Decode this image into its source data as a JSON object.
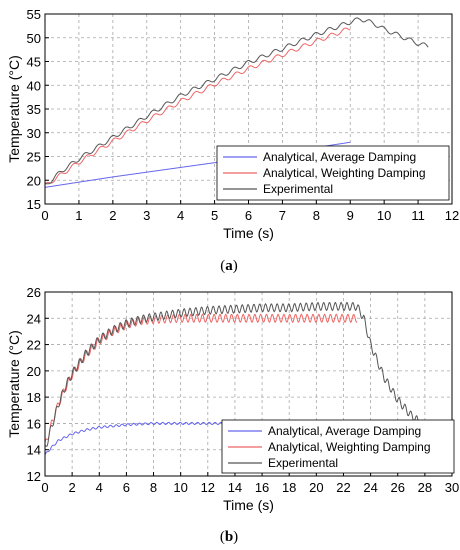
{
  "chart_data": [
    {
      "type": "line",
      "caption_letter": "a",
      "title": "",
      "xlabel": "Time (s)",
      "ylabel": "Temperature (°C)",
      "xlim": [
        0,
        12
      ],
      "ylim": [
        15,
        55
      ],
      "xticks": [
        "0",
        "1",
        "2",
        "3",
        "4",
        "5",
        "6",
        "7",
        "8",
        "9",
        "10",
        "11",
        "12"
      ],
      "yticks": [
        "15",
        "20",
        "25",
        "30",
        "35",
        "40",
        "45",
        "50",
        "55"
      ],
      "grid": true,
      "legend_position": "bottom-right",
      "series": [
        {
          "name": "Analytical, Average Damping",
          "color": "#6666ee",
          "ripple": 0,
          "x": [
            0,
            1,
            2,
            3,
            4,
            5,
            6,
            7,
            8,
            9
          ],
          "y": [
            18.5,
            19.6,
            20.7,
            21.7,
            22.7,
            23.7,
            24.8,
            25.8,
            26.9,
            28.0
          ]
        },
        {
          "name": "Analytical, Weighting Damping",
          "color": "#ee6666",
          "ripple": 0.45,
          "x": [
            0,
            0.5,
            1,
            2,
            3,
            4,
            5,
            6,
            7,
            8,
            9
          ],
          "y": [
            18.8,
            21.3,
            23.8,
            28.2,
            32.5,
            36.6,
            40.2,
            43.5,
            46.4,
            49.3,
            52.0
          ]
        },
        {
          "name": "Experimental",
          "color": "#555555",
          "ripple": 0.45,
          "x": [
            0,
            0.5,
            1,
            2,
            3,
            4,
            5,
            6,
            7,
            8,
            9,
            9.3,
            9.7,
            10,
            10.5,
            11,
            11.3
          ],
          "y": [
            18.8,
            22.0,
            24.5,
            29.0,
            33.5,
            37.8,
            41.3,
            44.8,
            47.7,
            50.7,
            53.3,
            54.0,
            53.0,
            51.8,
            50.3,
            48.8,
            48.2
          ]
        }
      ]
    },
    {
      "type": "line",
      "caption_letter": "b",
      "title": "",
      "xlabel": "Time (s)",
      "ylabel": "Temperature (°C)",
      "xlim": [
        0,
        30
      ],
      "ylim": [
        12,
        26
      ],
      "xticks": [
        "0",
        "2",
        "4",
        "6",
        "8",
        "10",
        "12",
        "14",
        "16",
        "18",
        "20",
        "22",
        "24",
        "26",
        "28",
        "30"
      ],
      "yticks": [
        "12",
        "14",
        "16",
        "18",
        "20",
        "22",
        "24",
        "26"
      ],
      "grid": true,
      "legend_position": "bottom-right",
      "series": [
        {
          "name": "Analytical, Average Damping",
          "color": "#6666ee",
          "ripple": 0.08,
          "x": [
            0,
            0.5,
            1,
            2,
            3,
            4,
            6,
            8,
            10,
            14,
            18,
            22,
            23
          ],
          "y": [
            13.6,
            14.2,
            14.7,
            15.2,
            15.5,
            15.7,
            15.9,
            16.0,
            16.0,
            16.0,
            16.0,
            16.0,
            16.0
          ]
        },
        {
          "name": "Analytical, Weighting Damping",
          "color": "#ee6666",
          "ripple": 0.3,
          "x": [
            0,
            0.5,
            1,
            1.5,
            2,
            3,
            4,
            5,
            6,
            7,
            8,
            10,
            12,
            16,
            20,
            23
          ],
          "y": [
            14.3,
            16.0,
            17.5,
            18.7,
            19.7,
            21.2,
            22.3,
            23.0,
            23.5,
            23.8,
            23.9,
            24.0,
            24.0,
            24.0,
            24.0,
            24.0
          ]
        },
        {
          "name": "Experimental",
          "color": "#555555",
          "ripple": 0.3,
          "x": [
            0,
            0.5,
            1,
            1.5,
            2,
            3,
            4,
            5,
            6,
            7,
            8,
            10,
            12,
            14,
            16,
            18,
            20,
            22,
            23,
            23.5,
            24,
            25,
            26,
            27,
            28,
            28.5
          ],
          "y": [
            14.0,
            15.8,
            17.5,
            18.8,
            19.8,
            21.3,
            22.4,
            23.1,
            23.6,
            23.9,
            24.1,
            24.4,
            24.6,
            24.7,
            24.8,
            24.8,
            24.9,
            24.9,
            24.9,
            24.0,
            22.0,
            19.5,
            17.8,
            16.6,
            15.8,
            15.5
          ]
        }
      ]
    }
  ]
}
